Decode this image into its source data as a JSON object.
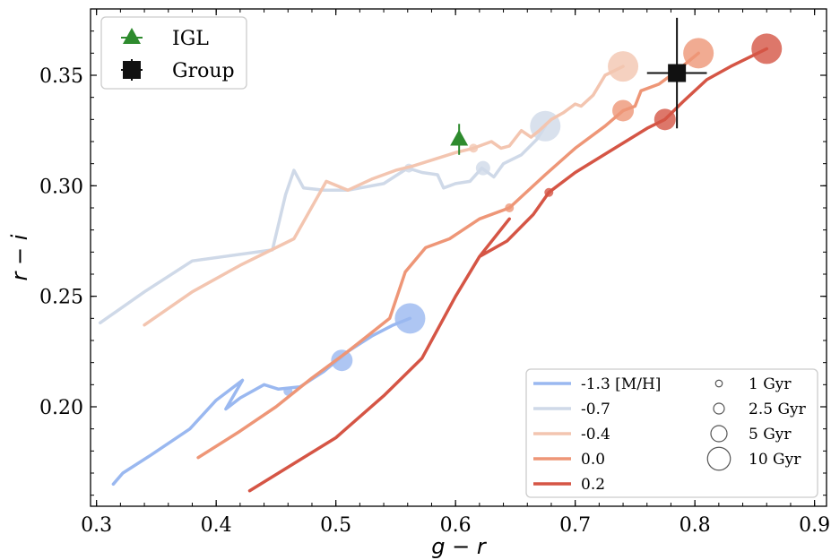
{
  "chart_data": {
    "type": "line",
    "xlabel": "g − r",
    "ylabel": "r − i",
    "xlim": [
      0.295,
      0.91
    ],
    "ylim": [
      0.155,
      0.38
    ],
    "xticks": [
      "0.3",
      "0.4",
      "0.5",
      "0.6",
      "0.7",
      "0.8",
      "0.9"
    ],
    "yticks": [
      "0.20",
      "0.25",
      "0.30",
      "0.35"
    ],
    "series": [
      {
        "name": "-1.3 [M/H]",
        "color": "#9ab8f0",
        "values": [
          [
            0.314,
            0.165
          ],
          [
            0.322,
            0.17
          ],
          [
            0.345,
            0.178
          ],
          [
            0.378,
            0.19
          ],
          [
            0.4,
            0.203
          ],
          [
            0.422,
            0.212
          ],
          [
            0.408,
            0.199
          ],
          [
            0.42,
            0.204
          ],
          [
            0.44,
            0.21
          ],
          [
            0.452,
            0.208
          ],
          [
            0.47,
            0.209
          ],
          [
            0.49,
            0.216
          ],
          [
            0.51,
            0.225
          ],
          [
            0.53,
            0.232
          ],
          [
            0.548,
            0.237
          ],
          [
            0.562,
            0.24
          ]
        ],
        "markers": [
          [
            0.46,
            0.207,
            1
          ],
          [
            0.505,
            0.221,
            5
          ],
          [
            0.562,
            0.24,
            10
          ]
        ]
      },
      {
        "name": "-0.7",
        "color": "#cfd9e8",
        "values": [
          [
            0.303,
            0.238
          ],
          [
            0.34,
            0.252
          ],
          [
            0.38,
            0.266
          ],
          [
            0.447,
            0.271
          ],
          [
            0.458,
            0.296
          ],
          [
            0.465,
            0.307
          ],
          [
            0.473,
            0.299
          ],
          [
            0.49,
            0.298
          ],
          [
            0.51,
            0.298
          ],
          [
            0.54,
            0.301
          ],
          [
            0.56,
            0.308
          ],
          [
            0.572,
            0.306
          ],
          [
            0.585,
            0.305
          ],
          [
            0.59,
            0.299
          ],
          [
            0.6,
            0.301
          ],
          [
            0.612,
            0.302
          ],
          [
            0.622,
            0.308
          ],
          [
            0.632,
            0.304
          ],
          [
            0.64,
            0.31
          ],
          [
            0.655,
            0.314
          ],
          [
            0.668,
            0.321
          ],
          [
            0.675,
            0.327
          ]
        ],
        "markers": [
          [
            0.561,
            0.308,
            1
          ],
          [
            0.623,
            0.308,
            2.5
          ],
          [
            0.675,
            0.327,
            10
          ]
        ]
      },
      {
        "name": "-0.4",
        "color": "#f3c5b0",
        "values": [
          [
            0.34,
            0.237
          ],
          [
            0.38,
            0.252
          ],
          [
            0.42,
            0.264
          ],
          [
            0.465,
            0.276
          ],
          [
            0.492,
            0.302
          ],
          [
            0.51,
            0.298
          ],
          [
            0.53,
            0.303
          ],
          [
            0.55,
            0.307
          ],
          [
            0.565,
            0.309
          ],
          [
            0.6,
            0.315
          ],
          [
            0.615,
            0.317
          ],
          [
            0.63,
            0.32
          ],
          [
            0.638,
            0.317
          ],
          [
            0.645,
            0.318
          ],
          [
            0.655,
            0.325
          ],
          [
            0.663,
            0.322
          ],
          [
            0.67,
            0.325
          ],
          [
            0.68,
            0.33
          ],
          [
            0.69,
            0.333
          ],
          [
            0.7,
            0.337
          ],
          [
            0.705,
            0.336
          ],
          [
            0.715,
            0.341
          ],
          [
            0.725,
            0.35
          ],
          [
            0.74,
            0.354
          ]
        ],
        "markers": [
          [
            0.615,
            0.317,
            1
          ],
          [
            0.74,
            0.354,
            10
          ]
        ]
      },
      {
        "name": "0.0",
        "color": "#ee9677",
        "values": [
          [
            0.385,
            0.177
          ],
          [
            0.42,
            0.189
          ],
          [
            0.45,
            0.2
          ],
          [
            0.48,
            0.213
          ],
          [
            0.51,
            0.225
          ],
          [
            0.545,
            0.24
          ],
          [
            0.558,
            0.261
          ],
          [
            0.575,
            0.272
          ],
          [
            0.595,
            0.276
          ],
          [
            0.62,
            0.285
          ],
          [
            0.645,
            0.29
          ],
          [
            0.675,
            0.305
          ],
          [
            0.7,
            0.317
          ],
          [
            0.725,
            0.327
          ],
          [
            0.74,
            0.334
          ],
          [
            0.75,
            0.336
          ],
          [
            0.755,
            0.343
          ],
          [
            0.77,
            0.346
          ],
          [
            0.785,
            0.352
          ],
          [
            0.803,
            0.36
          ]
        ],
        "markers": [
          [
            0.645,
            0.29,
            1
          ],
          [
            0.74,
            0.334,
            5
          ],
          [
            0.803,
            0.36,
            10
          ]
        ]
      },
      {
        "name": "0.2",
        "color": "#d55545",
        "values": [
          [
            0.428,
            0.162
          ],
          [
            0.5,
            0.186
          ],
          [
            0.54,
            0.205
          ],
          [
            0.572,
            0.222
          ],
          [
            0.6,
            0.25
          ],
          [
            0.62,
            0.268
          ],
          [
            0.645,
            0.285
          ],
          [
            0.62,
            0.268
          ],
          [
            0.643,
            0.275
          ],
          [
            0.665,
            0.287
          ],
          [
            0.678,
            0.297
          ],
          [
            0.7,
            0.306
          ],
          [
            0.73,
            0.316
          ],
          [
            0.76,
            0.326
          ],
          [
            0.775,
            0.33
          ],
          [
            0.79,
            0.338
          ],
          [
            0.81,
            0.348
          ],
          [
            0.83,
            0.354
          ],
          [
            0.86,
            0.362
          ]
        ],
        "markers": [
          [
            0.678,
            0.297,
            1
          ],
          [
            0.775,
            0.33,
            5
          ],
          [
            0.86,
            0.362,
            10
          ]
        ]
      }
    ],
    "points": [
      {
        "name": "IGL",
        "x": 0.603,
        "y": 0.321,
        "xerr": 0.0,
        "yerr": 0.007,
        "color": "#2e8b2e",
        "marker": "triangle"
      },
      {
        "name": "Group",
        "x": 0.785,
        "y": 0.351,
        "xerr": 0.025,
        "yerr": 0.025,
        "color": "#111111",
        "marker": "square"
      }
    ],
    "size_legend": [
      "1 Gyr",
      "2.5 Gyr",
      "5 Gyr",
      "10 Gyr"
    ],
    "legend_points_position": "top-left",
    "legend_series_position": "bottom-right",
    "grid": false
  }
}
